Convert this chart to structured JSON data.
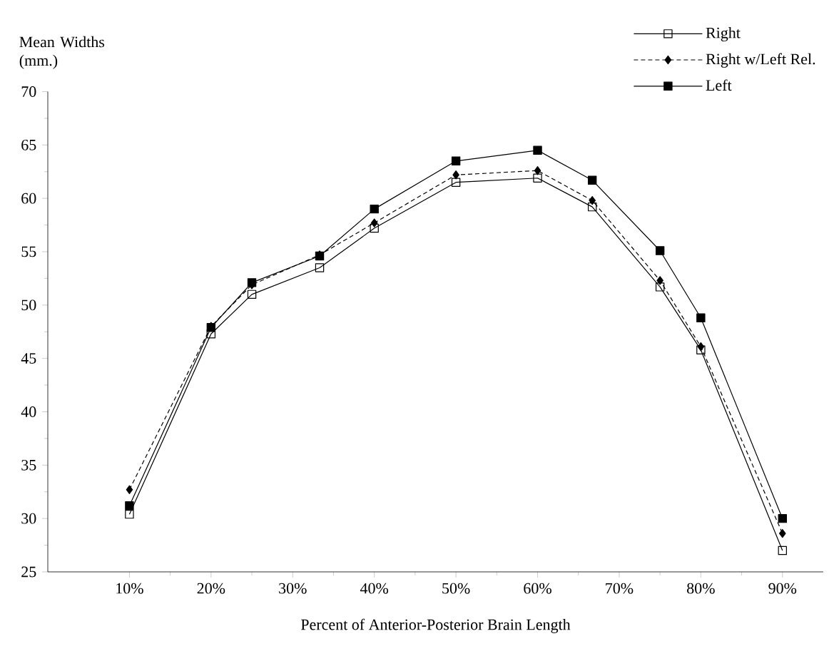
{
  "chart_data": {
    "type": "line",
    "x": [
      10,
      20,
      25,
      33.3,
      40,
      50,
      60,
      66.7,
      75,
      80,
      90
    ],
    "series": [
      {
        "name": "Right",
        "color": "#000000",
        "marker": "square",
        "line_style": "solid",
        "values": [
          30.4,
          47.3,
          51.0,
          53.5,
          57.2,
          61.5,
          61.9,
          59.2,
          51.7,
          45.8,
          27.0
        ]
      },
      {
        "name": "Right w/Left Rel.",
        "color": "#000000",
        "marker": "diamond",
        "line_style": "dashed",
        "values": [
          32.7,
          48.0,
          51.9,
          54.7,
          57.7,
          62.2,
          62.6,
          59.8,
          52.3,
          46.1,
          28.6
        ]
      },
      {
        "name": "Left",
        "color": "#000000",
        "marker": "square*",
        "line_style": "solid",
        "values": [
          31.2,
          47.9,
          52.1,
          54.6,
          59.0,
          63.5,
          64.5,
          61.7,
          55.1,
          48.8,
          30.0
        ]
      }
    ],
    "ylabel": "Mean Widths (mm.)",
    "xlabel": "Percent of Anterior-Posterior Brain Length",
    "xlim": [
      0,
      95
    ],
    "xticks": [
      {
        "value": 10,
        "label": "10%"
      },
      {
        "value": 20,
        "label": "20%"
      },
      {
        "value": 30,
        "label": "30%"
      },
      {
        "value": 40,
        "label": "40%"
      },
      {
        "value": 50,
        "label": "50%"
      },
      {
        "value": 60,
        "label": "60%"
      },
      {
        "value": 70,
        "label": "70%"
      },
      {
        "value": 80,
        "label": "80%"
      },
      {
        "value": 90,
        "label": "90%"
      }
    ],
    "ylim": [
      25,
      70
    ],
    "yticks": [
      25,
      30,
      35,
      40,
      45,
      50,
      55,
      60,
      65,
      70
    ],
    "grid": false,
    "legend": "top right"
  }
}
